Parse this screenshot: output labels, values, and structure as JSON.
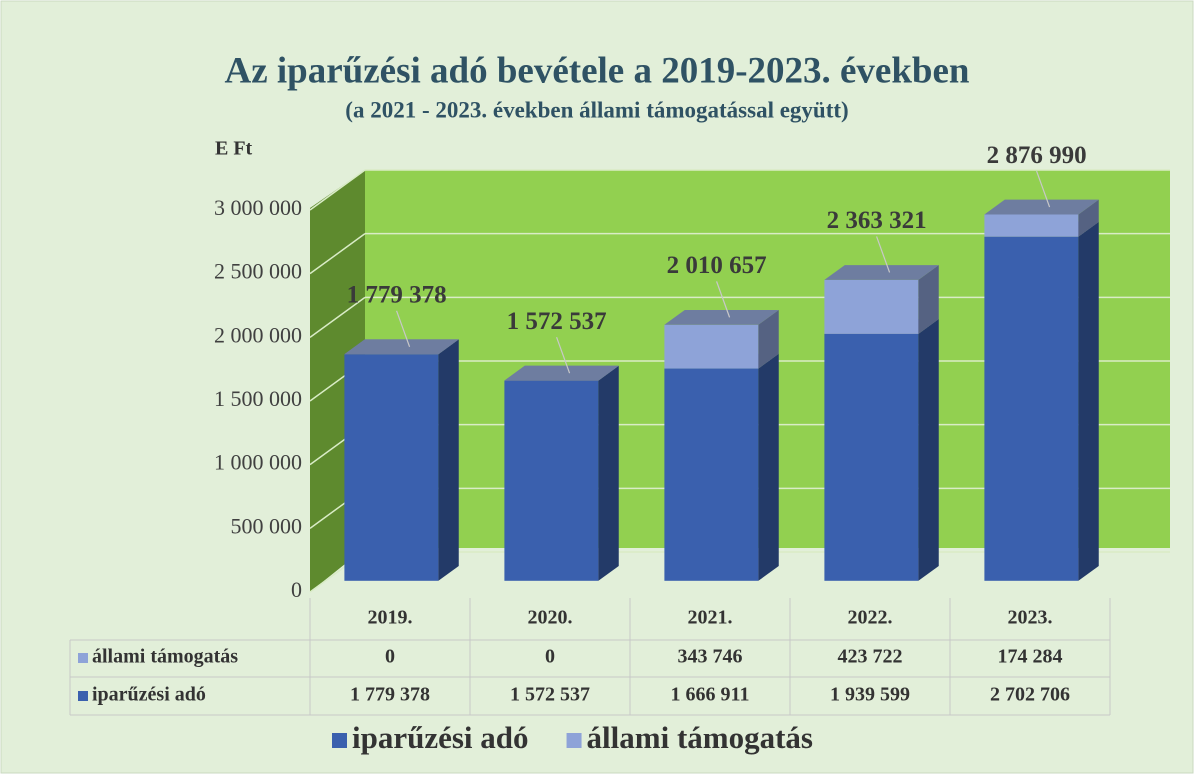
{
  "chart_data": {
    "type": "bar3d_stacked",
    "title": "Az iparűzési adó bevétele a 2019-2023. években",
    "subtitle": "(a 2021 - 2023. években állami támogatással együtt)",
    "y_axis_label": "E Ft",
    "categories": [
      "2019.",
      "2020.",
      "2021.",
      "2022.",
      "2023."
    ],
    "series": [
      {
        "name": "iparűzési adó",
        "color": "#3a60ae",
        "values": [
          1779378,
          1572537,
          1666911,
          1939599,
          2702706
        ],
        "value_labels": [
          "1 779 378",
          "1 572 537",
          "1 666 911",
          "1 939 599",
          "2 702 706"
        ]
      },
      {
        "name": "állami támogatás",
        "color": "#8ea3d8",
        "values": [
          0,
          0,
          343746,
          423722,
          174284
        ],
        "value_labels": [
          "0",
          "0",
          "343 746",
          "423 722",
          "174 284"
        ]
      }
    ],
    "total_labels": [
      "1 779 378",
      "1 572 537",
      "2 010 657",
      "2 363 321",
      "2 876 990"
    ],
    "ylim": [
      0,
      3000000
    ],
    "yticks": [
      0,
      {
        "value": 500000,
        "label": "500 000"
      },
      {
        "value": 1000000,
        "label": "1 000 000"
      },
      {
        "value": 1500000,
        "label": "1 500 000"
      },
      {
        "value": 2000000,
        "label": "2 000 000"
      },
      {
        "value": 2500000,
        "label": "2 500 000"
      },
      {
        "value": 3000000,
        "label": "3 000 000"
      }
    ],
    "grid": true,
    "legend": "bottom"
  }
}
